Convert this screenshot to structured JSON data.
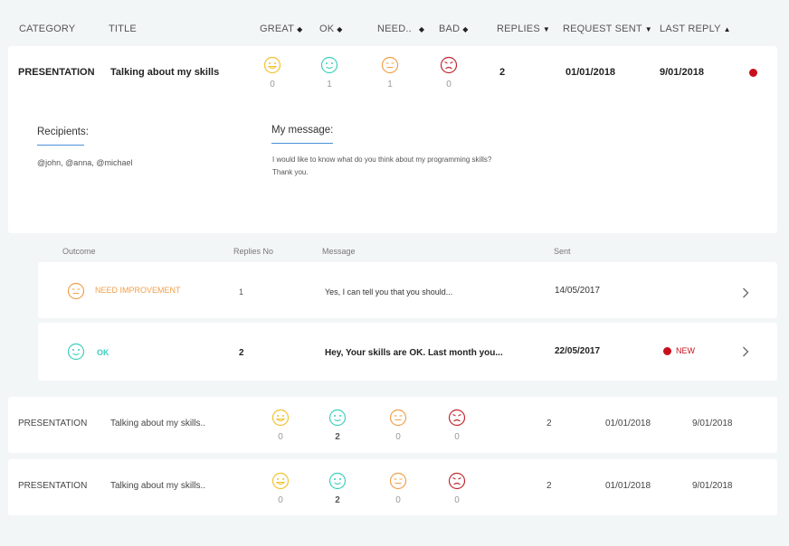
{
  "colors": {
    "great": "#f2c230",
    "ok": "#3ecfbd",
    "need": "#f0a04b",
    "bad": "#c0282f",
    "accent": "#4a90d9",
    "new_dot": "#c8101c"
  },
  "header": {
    "category": "CATEGORY",
    "title": "TITLE",
    "great": "GREAT",
    "ok": "OK",
    "need": "NEED..",
    "bad": "BAD",
    "replies": "REPLIES",
    "request_sent": "REQUEST SENT",
    "last_reply": "LAST REPLY"
  },
  "expanded": {
    "category": "PRESENTATION",
    "title": "Talking about my skills",
    "counts": {
      "great": "0",
      "ok": "1",
      "need": "1",
      "bad": "0"
    },
    "replies": "2",
    "request_sent": "01/01/2018",
    "last_reply": "9/01/2018",
    "recipients_label": "Recipients:",
    "recipients": "@john, @anna, @michael",
    "message_label": "My message:",
    "message_line1": "I would like to know what do you think about my programming skills?",
    "message_line2": "Thank you."
  },
  "sub_header": {
    "outcome": "Outcome",
    "replies_no": "Replies No",
    "message": "Message",
    "sent": "Sent"
  },
  "responses": [
    {
      "outcome": "NEED IMPROVEMENT",
      "replies": "1",
      "message": "Yes, I can tell you that you should...",
      "sent": "14/05/2017",
      "badge": ""
    },
    {
      "outcome": "OK",
      "replies": "2",
      "message": "Hey, Your skills are OK. Last month you...",
      "sent": "22/05/2017",
      "badge": "NEW"
    }
  ],
  "rows": [
    {
      "category": "PRESENTATION",
      "title": "Talking about my skills..",
      "counts": {
        "great": "0",
        "ok": "2",
        "need": "0",
        "bad": "0"
      },
      "replies": "2",
      "request_sent": "01/01/2018",
      "last_reply": "9/01/2018"
    },
    {
      "category": "PRESENTATION",
      "title": "Talking about my skills..",
      "counts": {
        "great": "0",
        "ok": "2",
        "need": "0",
        "bad": "0"
      },
      "replies": "2",
      "request_sent": "01/01/2018",
      "last_reply": "9/01/2018"
    }
  ]
}
